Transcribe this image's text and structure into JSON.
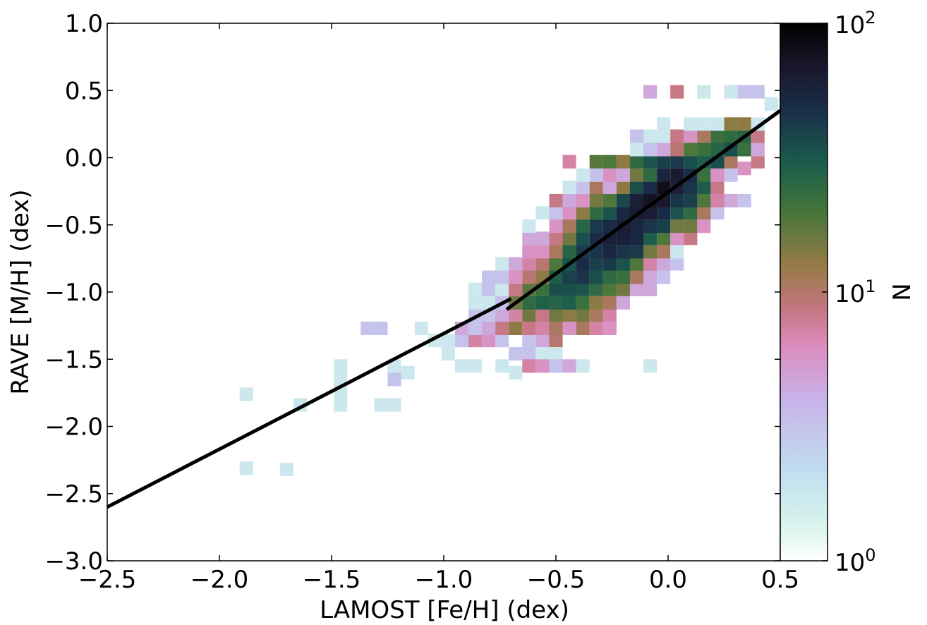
{
  "chart_data": {
    "type": "heatmap",
    "xlabel": "LAMOST [Fe/H] (dex)",
    "ylabel": "RAVE [M/H] (dex)",
    "xlim": [
      -2.5,
      0.5
    ],
    "ylim": [
      -3.0,
      1.0
    ],
    "x_ticks": [
      -2.5,
      -2.0,
      -1.5,
      -1.0,
      -0.5,
      0.0,
      0.5
    ],
    "x_tick_labels": [
      "−2.5",
      "−2.0",
      "−1.5",
      "−1.0",
      "−0.5",
      "0.0",
      "0.5"
    ],
    "y_ticks": [
      -3.0,
      -2.5,
      -2.0,
      -1.5,
      -1.0,
      -0.5,
      0.0,
      0.5,
      1.0
    ],
    "y_tick_labels": [
      "−3.0",
      "−2.5",
      "−2.0",
      "−1.5",
      "−1.0",
      "−0.5",
      "0.0",
      "0.5",
      "1.0"
    ],
    "bin_width_x": 0.06,
    "bin_width_y": 0.1,
    "bins": [
      [
        -1.88,
        -1.76,
        1
      ],
      [
        -1.88,
        -2.31,
        1
      ],
      [
        -1.64,
        -1.84,
        1
      ],
      [
        -1.46,
        -1.55,
        1
      ],
      [
        -1.46,
        -1.65,
        1
      ],
      [
        -1.46,
        -1.74,
        1
      ],
      [
        -1.46,
        -1.84,
        1
      ],
      [
        -1.34,
        -1.27,
        2
      ],
      [
        -1.28,
        -1.27,
        2
      ],
      [
        -1.28,
        -1.84,
        1
      ],
      [
        -1.22,
        -1.84,
        1
      ],
      [
        -1.22,
        -1.55,
        1
      ],
      [
        -1.22,
        -1.65,
        2
      ],
      [
        -1.16,
        -1.6,
        1
      ],
      [
        -1.1,
        -1.27,
        1
      ],
      [
        -1.04,
        -1.36,
        1
      ],
      [
        -0.98,
        -1.36,
        1
      ],
      [
        -0.98,
        -1.46,
        1
      ],
      [
        -0.92,
        -1.36,
        2
      ],
      [
        -0.92,
        -1.27,
        3
      ],
      [
        -0.92,
        -1.55,
        1
      ],
      [
        -0.86,
        -1.36,
        5
      ],
      [
        -0.86,
        -1.27,
        2
      ],
      [
        -0.86,
        -1.17,
        2
      ],
      [
        -0.86,
        -1.08,
        1
      ],
      [
        -0.86,
        -0.98,
        1
      ],
      [
        -0.86,
        -1.55,
        1
      ],
      [
        -0.8,
        -1.36,
        4
      ],
      [
        -0.8,
        -1.27,
        3
      ],
      [
        -0.8,
        -1.17,
        2
      ],
      [
        -0.8,
        -1.08,
        1
      ],
      [
        -0.8,
        -0.98,
        2
      ],
      [
        -0.8,
        -0.89,
        2
      ],
      [
        -0.74,
        -1.36,
        2
      ],
      [
        -0.74,
        -1.27,
        6
      ],
      [
        -0.74,
        -1.17,
        3
      ],
      [
        -0.74,
        -1.08,
        2
      ],
      [
        -0.74,
        -0.98,
        1
      ],
      [
        -0.74,
        -0.89,
        2
      ],
      [
        -0.74,
        -0.79,
        1
      ],
      [
        -0.74,
        -1.55,
        1
      ],
      [
        -0.68,
        -1.27,
        10
      ],
      [
        -0.68,
        -1.17,
        5
      ],
      [
        -0.68,
        -1.08,
        12
      ],
      [
        -0.68,
        -0.98,
        6
      ],
      [
        -0.68,
        -0.89,
        4
      ],
      [
        -0.68,
        -0.79,
        3
      ],
      [
        -0.68,
        -1.46,
        2
      ],
      [
        -0.68,
        -1.6,
        1
      ],
      [
        -0.62,
        -1.36,
        2
      ],
      [
        -0.62,
        -1.27,
        6
      ],
      [
        -0.62,
        -1.17,
        12
      ],
      [
        -0.62,
        -1.08,
        20
      ],
      [
        -0.62,
        -0.98,
        14
      ],
      [
        -0.62,
        -0.89,
        7
      ],
      [
        -0.62,
        -0.79,
        5
      ],
      [
        -0.62,
        -0.7,
        4
      ],
      [
        -0.62,
        -0.6,
        3
      ],
      [
        -0.62,
        -0.51,
        1
      ],
      [
        -0.62,
        -1.46,
        2
      ],
      [
        -0.62,
        -1.55,
        5
      ],
      [
        -0.56,
        -1.36,
        3
      ],
      [
        -0.56,
        -1.27,
        5
      ],
      [
        -0.56,
        -1.17,
        6
      ],
      [
        -0.56,
        -1.08,
        24
      ],
      [
        -0.56,
        -0.98,
        18
      ],
      [
        -0.56,
        -0.89,
        10
      ],
      [
        -0.56,
        -0.79,
        7
      ],
      [
        -0.56,
        -0.7,
        4
      ],
      [
        -0.56,
        -0.6,
        3
      ],
      [
        -0.56,
        -0.41,
        1
      ],
      [
        -0.56,
        -1.46,
        1
      ],
      [
        -0.56,
        -1.55,
        4
      ],
      [
        -0.5,
        -1.36,
        7
      ],
      [
        -0.5,
        -1.27,
        8
      ],
      [
        -0.5,
        -1.17,
        12
      ],
      [
        -0.5,
        -1.08,
        22
      ],
      [
        -0.5,
        -0.98,
        30
      ],
      [
        -0.5,
        -0.89,
        25
      ],
      [
        -0.5,
        -0.79,
        15
      ],
      [
        -0.5,
        -0.7,
        8
      ],
      [
        -0.5,
        -0.6,
        6
      ],
      [
        -0.5,
        -0.51,
        4
      ],
      [
        -0.5,
        -0.41,
        2
      ],
      [
        -0.5,
        -0.32,
        6
      ],
      [
        -0.5,
        -1.46,
        1
      ],
      [
        -0.5,
        -1.55,
        2
      ],
      [
        -0.44,
        -1.27,
        4
      ],
      [
        -0.44,
        -1.17,
        10
      ],
      [
        -0.44,
        -1.08,
        25
      ],
      [
        -0.44,
        -0.98,
        30
      ],
      [
        -0.44,
        -0.89,
        35
      ],
      [
        -0.44,
        -0.79,
        28
      ],
      [
        -0.44,
        -0.7,
        22
      ],
      [
        -0.44,
        -0.6,
        12
      ],
      [
        -0.44,
        -0.51,
        8
      ],
      [
        -0.44,
        -0.41,
        4
      ],
      [
        -0.44,
        -0.32,
        3
      ],
      [
        -0.44,
        -0.22,
        1
      ],
      [
        -0.44,
        -1.55,
        3
      ],
      [
        -0.44,
        -0.03,
        5
      ],
      [
        -0.38,
        -1.27,
        8
      ],
      [
        -0.38,
        -1.17,
        12
      ],
      [
        -0.38,
        -1.08,
        18
      ],
      [
        -0.38,
        -0.98,
        28
      ],
      [
        -0.38,
        -0.89,
        40
      ],
      [
        -0.38,
        -0.79,
        45
      ],
      [
        -0.38,
        -0.7,
        38
      ],
      [
        -0.38,
        -0.6,
        30
      ],
      [
        -0.38,
        -0.51,
        22
      ],
      [
        -0.38,
        -0.41,
        10
      ],
      [
        -0.38,
        -0.32,
        4
      ],
      [
        -0.38,
        -0.22,
        2
      ],
      [
        -0.38,
        -1.55,
        1
      ],
      [
        -0.38,
        -0.13,
        1
      ],
      [
        -0.32,
        -1.27,
        5
      ],
      [
        -0.32,
        -1.17,
        8
      ],
      [
        -0.32,
        -1.08,
        10
      ],
      [
        -0.32,
        -0.98,
        20
      ],
      [
        -0.32,
        -0.89,
        30
      ],
      [
        -0.32,
        -0.79,
        35
      ],
      [
        -0.32,
        -0.7,
        40
      ],
      [
        -0.32,
        -0.6,
        45
      ],
      [
        -0.32,
        -0.51,
        38
      ],
      [
        -0.32,
        -0.41,
        20
      ],
      [
        -0.32,
        -0.32,
        12
      ],
      [
        -0.32,
        -0.22,
        8
      ],
      [
        -0.32,
        -0.13,
        2
      ],
      [
        -0.32,
        -0.03,
        14
      ],
      [
        -0.26,
        -1.27,
        4
      ],
      [
        -0.26,
        -1.17,
        5
      ],
      [
        -0.26,
        -1.08,
        8
      ],
      [
        -0.26,
        -0.98,
        15
      ],
      [
        -0.26,
        -0.89,
        20
      ],
      [
        -0.26,
        -0.79,
        38
      ],
      [
        -0.26,
        -0.7,
        48
      ],
      [
        -0.26,
        -0.6,
        55
      ],
      [
        -0.26,
        -0.51,
        45
      ],
      [
        -0.26,
        -0.41,
        28
      ],
      [
        -0.26,
        -0.32,
        15
      ],
      [
        -0.26,
        -0.22,
        3
      ],
      [
        -0.26,
        -0.13,
        4
      ],
      [
        -0.26,
        -0.03,
        15
      ],
      [
        -0.2,
        -1.08,
        3
      ],
      [
        -0.2,
        -0.98,
        12
      ],
      [
        -0.2,
        -0.89,
        18
      ],
      [
        -0.2,
        -0.79,
        28
      ],
      [
        -0.2,
        -0.7,
        40
      ],
      [
        -0.2,
        -0.6,
        55
      ],
      [
        -0.2,
        -0.51,
        58
      ],
      [
        -0.2,
        -0.41,
        48
      ],
      [
        -0.2,
        -0.32,
        32
      ],
      [
        -0.2,
        -0.22,
        10
      ],
      [
        -0.2,
        -0.13,
        3
      ],
      [
        -0.2,
        -0.03,
        10
      ],
      [
        -0.14,
        -0.98,
        3
      ],
      [
        -0.14,
        -0.89,
        8
      ],
      [
        -0.14,
        -0.79,
        15
      ],
      [
        -0.14,
        -0.7,
        38
      ],
      [
        -0.14,
        -0.6,
        48
      ],
      [
        -0.14,
        -0.51,
        50
      ],
      [
        -0.14,
        -0.41,
        60
      ],
      [
        -0.14,
        -0.32,
        55
      ],
      [
        -0.14,
        -0.22,
        30
      ],
      [
        -0.14,
        -0.13,
        12
      ],
      [
        -0.14,
        -0.03,
        20
      ],
      [
        -0.14,
        0.06,
        1
      ],
      [
        -0.14,
        0.16,
        2
      ],
      [
        -0.08,
        -0.98,
        3
      ],
      [
        -0.08,
        -0.89,
        3
      ],
      [
        -0.08,
        -0.79,
        5
      ],
      [
        -0.08,
        -0.7,
        12
      ],
      [
        -0.08,
        -0.6,
        25
      ],
      [
        -0.08,
        -0.51,
        40
      ],
      [
        -0.08,
        -0.41,
        58
      ],
      [
        -0.08,
        -0.32,
        70
      ],
      [
        -0.08,
        -0.22,
        45
      ],
      [
        -0.08,
        -0.13,
        20
      ],
      [
        -0.08,
        -0.03,
        28
      ],
      [
        -0.08,
        0.06,
        2
      ],
      [
        -0.08,
        0.16,
        1
      ],
      [
        -0.08,
        -1.55,
        1
      ],
      [
        -0.08,
        0.49,
        3
      ],
      [
        -0.02,
        -0.89,
        2
      ],
      [
        -0.02,
        -0.79,
        3
      ],
      [
        -0.02,
        -0.7,
        8
      ],
      [
        -0.02,
        -0.6,
        15
      ],
      [
        -0.02,
        -0.51,
        35
      ],
      [
        -0.02,
        -0.41,
        45
      ],
      [
        -0.02,
        -0.32,
        65
      ],
      [
        -0.02,
        -0.22,
        75
      ],
      [
        -0.02,
        -0.13,
        50
      ],
      [
        -0.02,
        -0.03,
        35
      ],
      [
        -0.02,
        0.06,
        3
      ],
      [
        -0.02,
        0.16,
        1
      ],
      [
        -0.02,
        0.25,
        1
      ],
      [
        0.04,
        -0.79,
        2
      ],
      [
        0.04,
        -0.7,
        1
      ],
      [
        0.04,
        -0.6,
        4
      ],
      [
        0.04,
        -0.51,
        12
      ],
      [
        0.04,
        -0.41,
        28
      ],
      [
        0.04,
        -0.32,
        40
      ],
      [
        0.04,
        -0.22,
        55
      ],
      [
        0.04,
        -0.13,
        60
      ],
      [
        0.04,
        -0.03,
        38
      ],
      [
        0.04,
        0.06,
        7
      ],
      [
        0.04,
        0.16,
        6
      ],
      [
        0.04,
        0.49,
        6
      ],
      [
        0.1,
        -0.6,
        6
      ],
      [
        0.1,
        -0.51,
        12
      ],
      [
        0.1,
        -0.41,
        20
      ],
      [
        0.1,
        -0.32,
        35
      ],
      [
        0.1,
        -0.22,
        40
      ],
      [
        0.1,
        -0.13,
        45
      ],
      [
        0.1,
        -0.03,
        30
      ],
      [
        0.1,
        0.06,
        15
      ],
      [
        0.1,
        0.16,
        4
      ],
      [
        0.1,
        0.25,
        1
      ],
      [
        0.16,
        -0.51,
        4
      ],
      [
        0.16,
        -0.41,
        8
      ],
      [
        0.16,
        -0.32,
        15
      ],
      [
        0.16,
        -0.22,
        25
      ],
      [
        0.16,
        -0.13,
        18
      ],
      [
        0.16,
        -0.03,
        25
      ],
      [
        0.16,
        0.06,
        18
      ],
      [
        0.16,
        0.16,
        8
      ],
      [
        0.16,
        0.25,
        1
      ],
      [
        0.16,
        0.49,
        1
      ],
      [
        0.22,
        -0.41,
        2
      ],
      [
        0.22,
        -0.32,
        5
      ],
      [
        0.22,
        -0.22,
        6
      ],
      [
        0.22,
        -0.13,
        4
      ],
      [
        0.22,
        -0.03,
        30
      ],
      [
        0.22,
        0.06,
        22
      ],
      [
        0.22,
        0.16,
        18
      ],
      [
        0.22,
        0.25,
        1
      ],
      [
        0.28,
        -0.32,
        3
      ],
      [
        0.28,
        -0.13,
        2
      ],
      [
        0.28,
        -0.03,
        8
      ],
      [
        0.28,
        0.06,
        30
      ],
      [
        0.28,
        0.16,
        20
      ],
      [
        0.28,
        0.25,
        10
      ],
      [
        0.28,
        0.49,
        1
      ],
      [
        0.34,
        -0.32,
        2
      ],
      [
        0.34,
        -0.08,
        4
      ],
      [
        0.34,
        0.06,
        18
      ],
      [
        0.34,
        0.16,
        22
      ],
      [
        0.34,
        0.25,
        10
      ],
      [
        0.34,
        0.49,
        2
      ],
      [
        0.4,
        -0.03,
        6
      ],
      [
        0.4,
        0.06,
        3
      ],
      [
        0.4,
        0.16,
        6
      ],
      [
        0.4,
        0.25,
        1
      ],
      [
        0.4,
        0.49,
        2
      ],
      [
        0.46,
        0.4,
        1
      ],
      [
        -1.7,
        -2.32,
        1
      ]
    ],
    "fit_lines": [
      {
        "x": [
          -2.5,
          -0.7
        ],
        "y": [
          -2.6,
          -1.05
        ]
      },
      {
        "x": [
          -0.72,
          0.5
        ],
        "y": [
          -1.13,
          0.35
        ]
      }
    ],
    "colorbar": {
      "label": "N",
      "scale": "log",
      "min": 1,
      "max": 100,
      "tick_bases": [
        "10",
        "10",
        "10"
      ],
      "tick_exponents": [
        "0",
        "1",
        "2"
      ],
      "colormap": "cubehelix_r"
    },
    "grid": false
  }
}
